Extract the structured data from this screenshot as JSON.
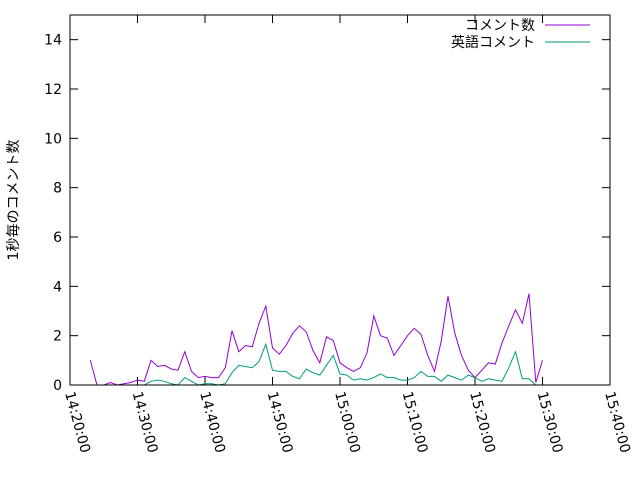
{
  "chart_data": {
    "type": "line",
    "title": "",
    "xlabel": "",
    "ylabel": "1秒毎のコメント数",
    "xlim": [
      "14:20:00",
      "15:40:00"
    ],
    "ylim": [
      0,
      15
    ],
    "x_ticks": [
      "14:20:00",
      "14:30:00",
      "14:40:00",
      "14:50:00",
      "15:00:00",
      "15:10:00",
      "15:20:00",
      "15:30:00",
      "15:40:00"
    ],
    "y_ticks": [
      0,
      2,
      4,
      6,
      8,
      10,
      12,
      14
    ],
    "grid": false,
    "legend_position": "top-right",
    "x": [
      "14:23",
      "14:24",
      "14:25",
      "14:26",
      "14:27",
      "14:28",
      "14:29",
      "14:30",
      "14:31",
      "14:32",
      "14:33",
      "14:34",
      "14:35",
      "14:36",
      "14:37",
      "14:38",
      "14:39",
      "14:40",
      "14:41",
      "14:42",
      "14:43",
      "14:44",
      "14:45",
      "14:46",
      "14:47",
      "14:48",
      "14:49",
      "14:50",
      "14:51",
      "14:52",
      "14:53",
      "14:54",
      "14:55",
      "14:56",
      "14:57",
      "14:58",
      "14:59",
      "15:00",
      "15:01",
      "15:02",
      "15:03",
      "15:04",
      "15:05",
      "15:06",
      "15:07",
      "15:08",
      "15:09",
      "15:10",
      "15:11",
      "15:12",
      "15:13",
      "15:14",
      "15:15",
      "15:16",
      "15:17",
      "15:18",
      "15:19",
      "15:20",
      "15:21",
      "15:22",
      "15:23",
      "15:24",
      "15:25",
      "15:26",
      "15:27",
      "15:28",
      "15:29",
      "15:30"
    ],
    "series": [
      {
        "name": "コメント数",
        "color": "#9400d3",
        "values": [
          1.0,
          0,
          0,
          0.1,
          0,
          0.05,
          0.1,
          0.2,
          0.15,
          1.0,
          0.75,
          0.8,
          0.65,
          0.6,
          1.35,
          0.55,
          0.3,
          0.35,
          0.3,
          0.3,
          0.7,
          2.2,
          1.35,
          1.6,
          1.55,
          2.5,
          3.2,
          1.5,
          1.25,
          1.6,
          2.1,
          2.4,
          2.15,
          1.4,
          0.9,
          1.95,
          1.8,
          0.9,
          0.7,
          0.55,
          0.7,
          1.3,
          2.8,
          2.0,
          1.9,
          1.2,
          1.6,
          2.0,
          2.3,
          2.05,
          1.2,
          0.55,
          1.8,
          3.6,
          2.1,
          1.2,
          0.6,
          0.3,
          0.6,
          0.9,
          0.85,
          1.7,
          2.4,
          3.05,
          2.5,
          3.7,
          0.1,
          1.0
        ]
      },
      {
        "name": "英語コメント",
        "color": "#009e73",
        "values": [
          0,
          0,
          0,
          0,
          0,
          0,
          0,
          0,
          0,
          0.15,
          0.2,
          0.15,
          0.05,
          0,
          0.3,
          0.15,
          0,
          0.05,
          0.05,
          0,
          0.05,
          0.5,
          0.8,
          0.75,
          0.7,
          0.95,
          1.65,
          0.6,
          0.55,
          0.55,
          0.35,
          0.25,
          0.65,
          0.5,
          0.4,
          0.8,
          1.2,
          0.45,
          0.4,
          0.2,
          0.25,
          0.2,
          0.3,
          0.45,
          0.3,
          0.3,
          0.2,
          0.2,
          0.3,
          0.55,
          0.35,
          0.35,
          0.15,
          0.4,
          0.3,
          0.2,
          0.4,
          0.3,
          0.15,
          0.25,
          0.2,
          0.15,
          0.7,
          1.35,
          0.25,
          0.25,
          0,
          0
        ]
      }
    ]
  }
}
